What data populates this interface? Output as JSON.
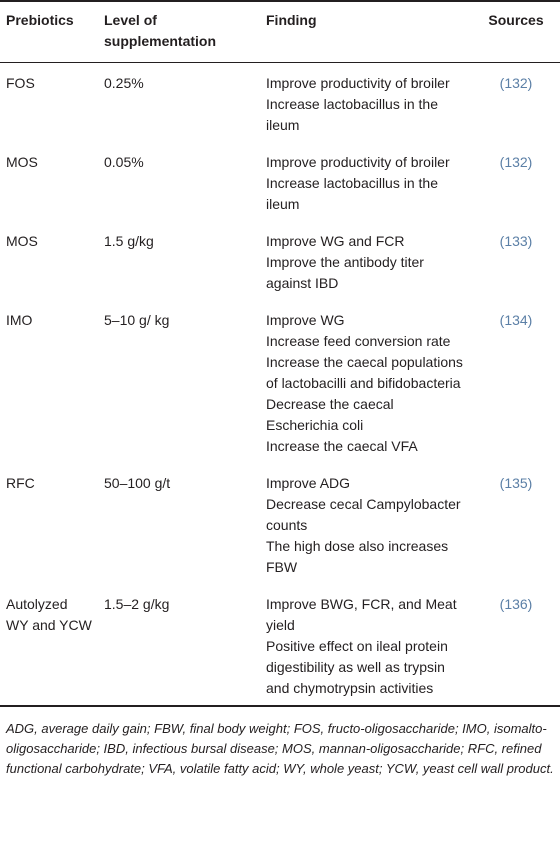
{
  "table": {
    "header": [
      "Prebiotics",
      "Level of supplementation",
      "Finding",
      "Sources"
    ],
    "rows": [
      {
        "prebiotic": "FOS",
        "level": "0.25%",
        "findings": [
          "Improve productivity of broiler",
          "Increase lactobacillus in the ileum"
        ],
        "source": "(132)"
      },
      {
        "prebiotic": "MOS",
        "level": "0.05%",
        "findings": [
          "Improve productivity of broiler",
          "Increase lactobacillus in the ileum"
        ],
        "source": "(132)"
      },
      {
        "prebiotic": "MOS",
        "level": "1.5 g/kg",
        "findings": [
          "Improve WG and FCR",
          "Improve the antibody titer against IBD"
        ],
        "source": "(133)"
      },
      {
        "prebiotic": "IMO",
        "level": "5–10 g/ kg",
        "findings": [
          "Improve WG",
          "Increase feed conversion rate",
          "Increase the caecal populations of lactobacilli and bifidobacteria",
          "Decrease the caecal Escherichia coli",
          "Increase the caecal VFA"
        ],
        "source": "(134)"
      },
      {
        "prebiotic": "RFC",
        "level": "50–100 g/t",
        "findings": [
          "Improve ADG",
          "Decrease cecal Campylobacter counts",
          "The high dose also increases FBW"
        ],
        "source": "(135)"
      },
      {
        "prebiotic": "Autolyzed WY and YCW",
        "level": "1.5–2 g/kg",
        "findings": [
          "Improve BWG, FCR, and Meat yield",
          "Positive effect on ileal protein digestibility as well as trypsin and chymotrypsin activities"
        ],
        "source": "(136)"
      }
    ],
    "footnote": "ADG, average daily gain; FBW, final body weight; FOS, fructo-oligosaccharide; IMO, isomalto-oligosaccharide; IBD, infectious bursal disease; MOS, mannan-oligosaccharide; RFC, refined functional carbohydrate; VFA, volatile fatty acid; WY, whole yeast; YCW, yeast cell wall product."
  }
}
